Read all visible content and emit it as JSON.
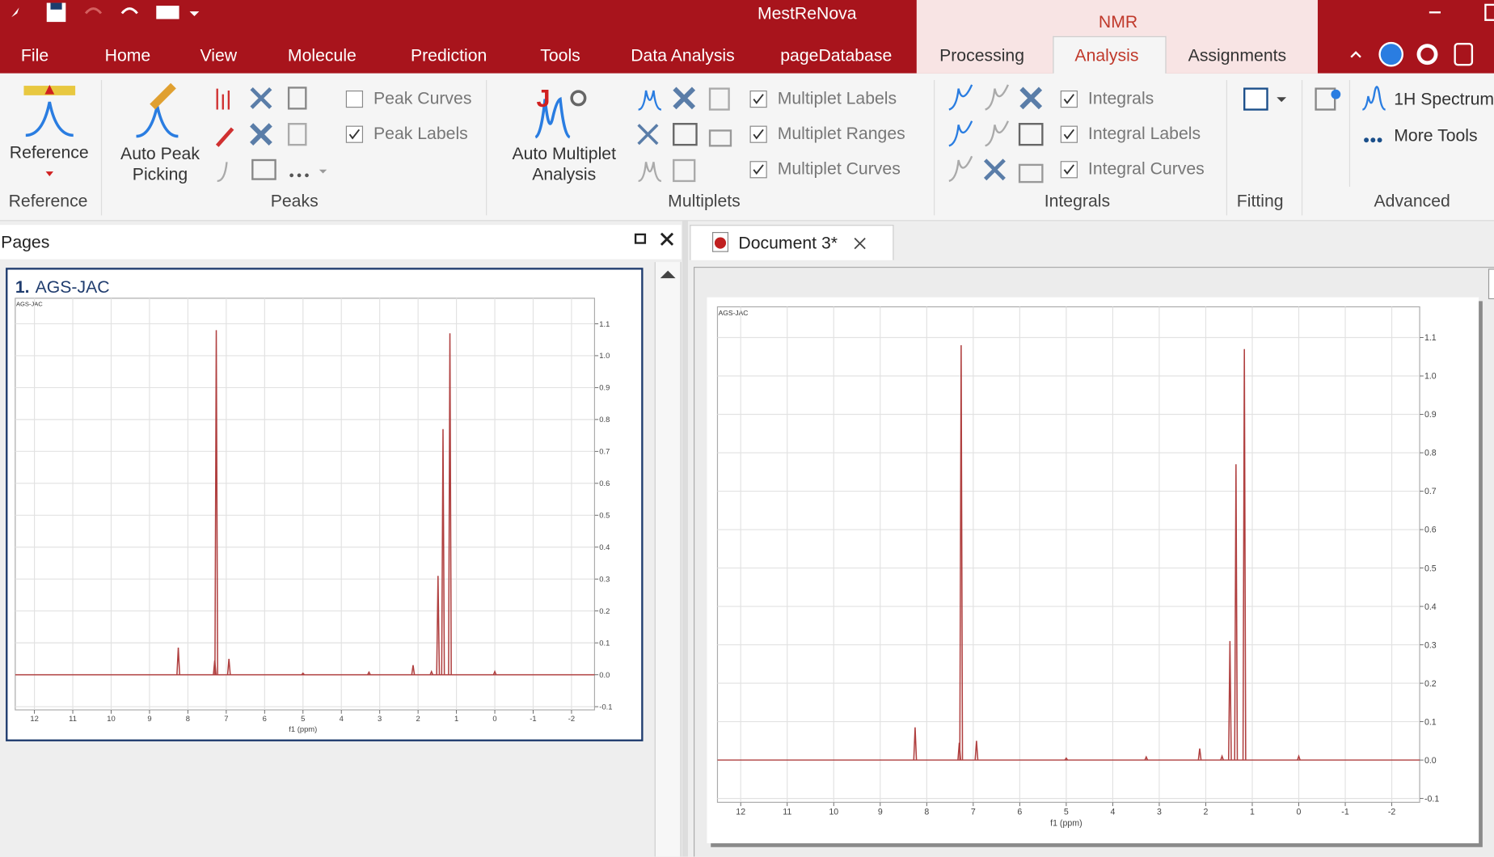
{
  "app": {
    "title": "MestReNova",
    "context_tab": "NMR"
  },
  "menu": [
    "File",
    "Home",
    "View",
    "Molecule",
    "Prediction",
    "Tools",
    "Data Analysis",
    "pageDatabase",
    "Processing",
    "Analysis",
    "Assignments"
  ],
  "ribbon": {
    "reference": {
      "button": "Reference",
      "group": "Reference"
    },
    "peaks": {
      "button": "Auto Peak Picking",
      "checks": [
        {
          "label": "Peak Curves",
          "checked": false
        },
        {
          "label": "Peak Labels",
          "checked": true
        }
      ],
      "group": "Peaks"
    },
    "multiplets": {
      "button": "Auto Multiplet Analysis",
      "checks": [
        {
          "label": "Multiplet Labels",
          "checked": true
        },
        {
          "label": "Multiplet Ranges",
          "checked": true
        },
        {
          "label": "Multiplet Curves",
          "checked": true
        }
      ],
      "group": "Multiplets"
    },
    "integrals": {
      "checks": [
        {
          "label": "Integrals",
          "checked": true
        },
        {
          "label": "Integral Labels",
          "checked": true
        },
        {
          "label": "Integral Curves",
          "checked": true
        }
      ],
      "group": "Integrals"
    },
    "fitting": {
      "group": "Fitting"
    },
    "advanced": {
      "items": [
        "1H Spectrum",
        "More Tools"
      ],
      "group": "Advanced"
    }
  },
  "pages_panel": {
    "title": "Pages",
    "page_number": "1.",
    "page_name": "AGS-JAC"
  },
  "document_tab": "Document 3*",
  "spectrum": {
    "type": "nmr-spectrum",
    "title": "AGS-JAC",
    "x_label": "f1 (ppm)",
    "xlim": [
      12.5,
      -2.6
    ],
    "xticks": [
      12,
      11,
      10,
      9,
      8,
      7,
      6,
      5,
      4,
      3,
      2,
      1,
      0,
      -1,
      -2
    ],
    "ylim": [
      -0.11,
      1.18
    ],
    "yticks": [
      -0.1,
      {
        "value": 0,
        "label": "0.0"
      },
      0.1,
      0.2,
      0.3,
      0.4,
      0.5,
      0.6,
      0.7,
      0.8,
      0.9,
      {
        "value": 1,
        "label": "1.0"
      },
      1.1
    ],
    "color": "#b04040",
    "grid": true,
    "peaks": [
      {
        "ppm": 8.25,
        "height": 0.085
      },
      {
        "ppm": 7.3,
        "height": 0.045
      },
      {
        "ppm": 7.26,
        "height": 1.08
      },
      {
        "ppm": 6.93,
        "height": 0.05
      },
      {
        "ppm": 5.0,
        "height": 0.005
      },
      {
        "ppm": 3.28,
        "height": 0.008
      },
      {
        "ppm": 2.13,
        "height": 0.03
      },
      {
        "ppm": 1.65,
        "height": 0.01
      },
      {
        "ppm": 1.48,
        "height": 0.31
      },
      {
        "ppm": 1.35,
        "height": 0.77
      },
      {
        "ppm": 1.17,
        "height": 1.07
      },
      {
        "ppm": 0.0,
        "height": 0.01
      }
    ]
  }
}
